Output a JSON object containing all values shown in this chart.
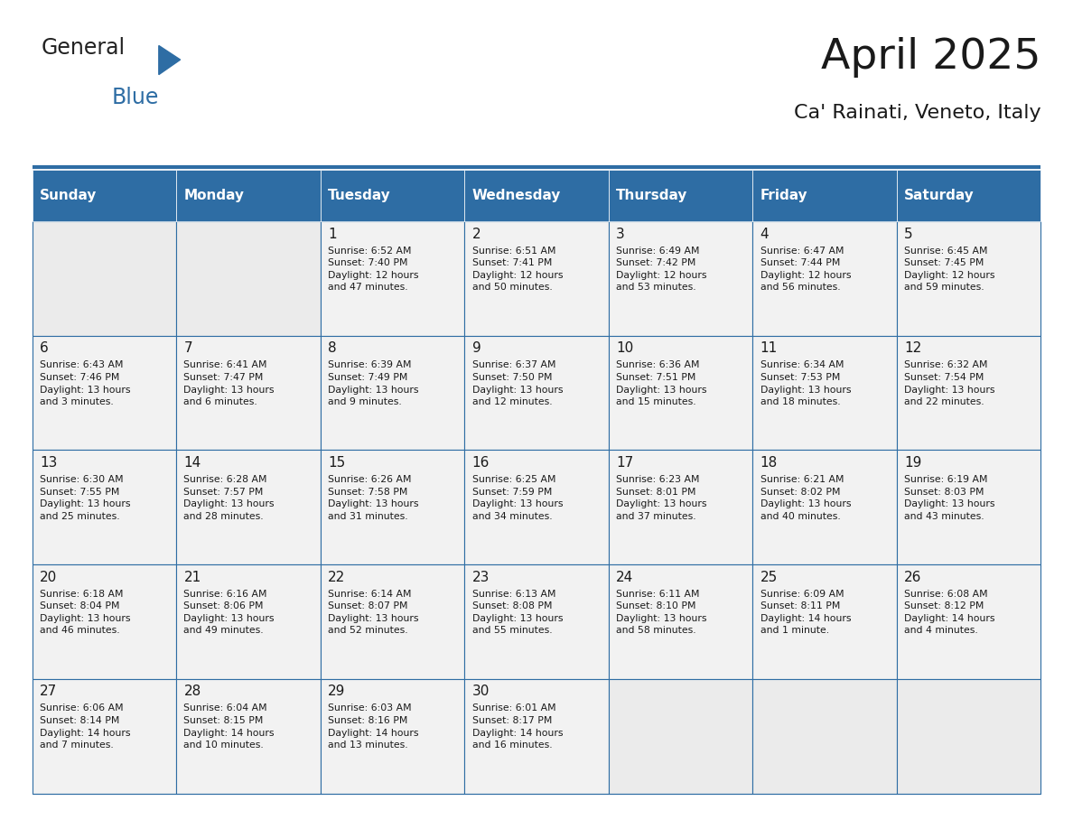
{
  "title": "April 2025",
  "subtitle": "Ca' Rainati, Veneto, Italy",
  "header_color": "#2E6DA4",
  "header_text_color": "#FFFFFF",
  "cell_bg_color": "#F2F2F2",
  "empty_cell_bg_color": "#EBEBEB",
  "cell_text_color": "#1a1a1a",
  "border_color": "#2E6DA4",
  "days_of_week": [
    "Sunday",
    "Monday",
    "Tuesday",
    "Wednesday",
    "Thursday",
    "Friday",
    "Saturday"
  ],
  "weeks": [
    [
      {
        "day": "",
        "info": ""
      },
      {
        "day": "",
        "info": ""
      },
      {
        "day": "1",
        "info": "Sunrise: 6:52 AM\nSunset: 7:40 PM\nDaylight: 12 hours\nand 47 minutes."
      },
      {
        "day": "2",
        "info": "Sunrise: 6:51 AM\nSunset: 7:41 PM\nDaylight: 12 hours\nand 50 minutes."
      },
      {
        "day": "3",
        "info": "Sunrise: 6:49 AM\nSunset: 7:42 PM\nDaylight: 12 hours\nand 53 minutes."
      },
      {
        "day": "4",
        "info": "Sunrise: 6:47 AM\nSunset: 7:44 PM\nDaylight: 12 hours\nand 56 minutes."
      },
      {
        "day": "5",
        "info": "Sunrise: 6:45 AM\nSunset: 7:45 PM\nDaylight: 12 hours\nand 59 minutes."
      }
    ],
    [
      {
        "day": "6",
        "info": "Sunrise: 6:43 AM\nSunset: 7:46 PM\nDaylight: 13 hours\nand 3 minutes."
      },
      {
        "day": "7",
        "info": "Sunrise: 6:41 AM\nSunset: 7:47 PM\nDaylight: 13 hours\nand 6 minutes."
      },
      {
        "day": "8",
        "info": "Sunrise: 6:39 AM\nSunset: 7:49 PM\nDaylight: 13 hours\nand 9 minutes."
      },
      {
        "day": "9",
        "info": "Sunrise: 6:37 AM\nSunset: 7:50 PM\nDaylight: 13 hours\nand 12 minutes."
      },
      {
        "day": "10",
        "info": "Sunrise: 6:36 AM\nSunset: 7:51 PM\nDaylight: 13 hours\nand 15 minutes."
      },
      {
        "day": "11",
        "info": "Sunrise: 6:34 AM\nSunset: 7:53 PM\nDaylight: 13 hours\nand 18 minutes."
      },
      {
        "day": "12",
        "info": "Sunrise: 6:32 AM\nSunset: 7:54 PM\nDaylight: 13 hours\nand 22 minutes."
      }
    ],
    [
      {
        "day": "13",
        "info": "Sunrise: 6:30 AM\nSunset: 7:55 PM\nDaylight: 13 hours\nand 25 minutes."
      },
      {
        "day": "14",
        "info": "Sunrise: 6:28 AM\nSunset: 7:57 PM\nDaylight: 13 hours\nand 28 minutes."
      },
      {
        "day": "15",
        "info": "Sunrise: 6:26 AM\nSunset: 7:58 PM\nDaylight: 13 hours\nand 31 minutes."
      },
      {
        "day": "16",
        "info": "Sunrise: 6:25 AM\nSunset: 7:59 PM\nDaylight: 13 hours\nand 34 minutes."
      },
      {
        "day": "17",
        "info": "Sunrise: 6:23 AM\nSunset: 8:01 PM\nDaylight: 13 hours\nand 37 minutes."
      },
      {
        "day": "18",
        "info": "Sunrise: 6:21 AM\nSunset: 8:02 PM\nDaylight: 13 hours\nand 40 minutes."
      },
      {
        "day": "19",
        "info": "Sunrise: 6:19 AM\nSunset: 8:03 PM\nDaylight: 13 hours\nand 43 minutes."
      }
    ],
    [
      {
        "day": "20",
        "info": "Sunrise: 6:18 AM\nSunset: 8:04 PM\nDaylight: 13 hours\nand 46 minutes."
      },
      {
        "day": "21",
        "info": "Sunrise: 6:16 AM\nSunset: 8:06 PM\nDaylight: 13 hours\nand 49 minutes."
      },
      {
        "day": "22",
        "info": "Sunrise: 6:14 AM\nSunset: 8:07 PM\nDaylight: 13 hours\nand 52 minutes."
      },
      {
        "day": "23",
        "info": "Sunrise: 6:13 AM\nSunset: 8:08 PM\nDaylight: 13 hours\nand 55 minutes."
      },
      {
        "day": "24",
        "info": "Sunrise: 6:11 AM\nSunset: 8:10 PM\nDaylight: 13 hours\nand 58 minutes."
      },
      {
        "day": "25",
        "info": "Sunrise: 6:09 AM\nSunset: 8:11 PM\nDaylight: 14 hours\nand 1 minute."
      },
      {
        "day": "26",
        "info": "Sunrise: 6:08 AM\nSunset: 8:12 PM\nDaylight: 14 hours\nand 4 minutes."
      }
    ],
    [
      {
        "day": "27",
        "info": "Sunrise: 6:06 AM\nSunset: 8:14 PM\nDaylight: 14 hours\nand 7 minutes."
      },
      {
        "day": "28",
        "info": "Sunrise: 6:04 AM\nSunset: 8:15 PM\nDaylight: 14 hours\nand 10 minutes."
      },
      {
        "day": "29",
        "info": "Sunrise: 6:03 AM\nSunset: 8:16 PM\nDaylight: 14 hours\nand 13 minutes."
      },
      {
        "day": "30",
        "info": "Sunrise: 6:01 AM\nSunset: 8:17 PM\nDaylight: 14 hours\nand 16 minutes."
      },
      {
        "day": "",
        "info": ""
      },
      {
        "day": "",
        "info": ""
      },
      {
        "day": "",
        "info": ""
      }
    ]
  ]
}
